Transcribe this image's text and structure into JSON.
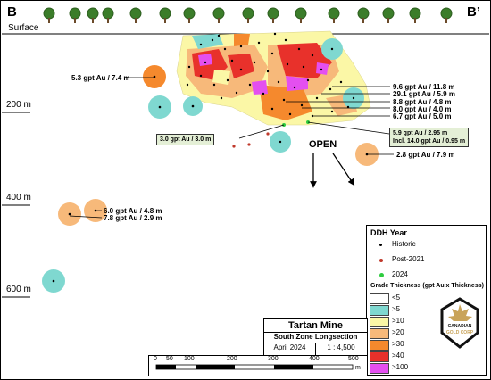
{
  "section": {
    "start": "B",
    "end": "B’"
  },
  "surface_label": "Surface",
  "depth_labels": [
    "200 m",
    "400 m",
    "600 m"
  ],
  "intercepts": [
    "5.3 gpt Au / 7.4 m",
    "9.6 gpt Au / 11.8 m",
    "29.1 gpt Au / 5.9 m",
    "8.8 gpt Au / 4.8 m",
    "8.0 gpt Au / 4.0 m",
    "6.7 gpt Au / 5.0 m",
    "2.8 gpt Au / 7.9 m",
    "6.0 gpt Au / 4.8 m",
    "7.8 gpt Au / 2.9 m"
  ],
  "highlight_boxes": [
    {
      "line1": "3.0 gpt Au / 3.0 m",
      "line2": ""
    },
    {
      "line1": "5.9 gpt Au / 2.95 m",
      "line2": "Incl. 14.0 gpt Au / 0.95 m"
    }
  ],
  "open_label": "OPEN",
  "legend": {
    "ddh_title": "DDH Year",
    "ddh_items": [
      {
        "label": "Historic",
        "color": "#000000"
      },
      {
        "label": "Post-2021",
        "color": "#c0392b"
      },
      {
        "label": "2024",
        "color": "#2ecc40"
      }
    ],
    "grade_title": "Grade Thickness (gpt Au x Thickness)",
    "grade_items": [
      {
        "label": "<5",
        "color": "#ffffff"
      },
      {
        "label": ">5",
        "color": "#7fd8d0"
      },
      {
        "label": ">10",
        "color": "#fbf7a6"
      },
      {
        "label": ">20",
        "color": "#f7b97a"
      },
      {
        "label": ">30",
        "color": "#f5892d"
      },
      {
        "label": ">40",
        "color": "#e8312b"
      },
      {
        "label": ">100",
        "color": "#e44ff0"
      }
    ]
  },
  "logo": {
    "line1": "CANADIAN",
    "line2": "GOLD CORP"
  },
  "title_block": {
    "title": "Tartan Mine",
    "subtitle": "South Zone Longsection",
    "date": "April 2024",
    "scale": "1 : 4,500"
  },
  "scale_bar": {
    "ticks": [
      "0",
      "50",
      "100",
      "200",
      "300",
      "400",
      "500"
    ],
    "unit": "m"
  }
}
